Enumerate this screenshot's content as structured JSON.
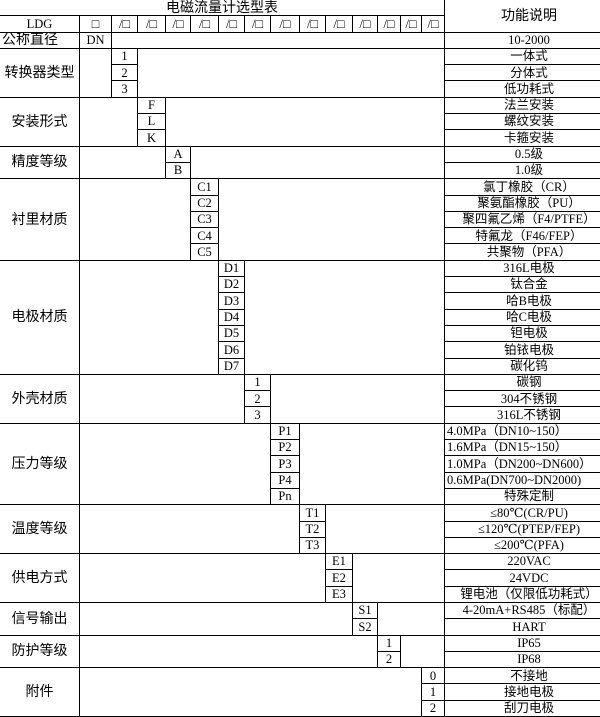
{
  "title": "电磁流量计选型表",
  "function_header": "功能说明",
  "model_row": {
    "label": "LDG",
    "cells": [
      "□",
      "/□",
      "/□",
      "/□",
      "/□",
      "/□",
      "/□",
      "/□",
      "/□",
      "/□",
      "/□",
      "/□",
      "/□",
      "/□"
    ]
  },
  "nominal_diameter": {
    "label": "公称直径",
    "code": "DN",
    "function": "10-2000"
  },
  "groups": [
    {
      "label": "转换器类型",
      "codes": [
        "1",
        "2",
        "3"
      ],
      "functions": [
        "一体式",
        "分体式",
        "低功耗式"
      ]
    },
    {
      "label": "安装形式",
      "codes": [
        "F",
        "L",
        "K"
      ],
      "functions": [
        "法兰安装",
        "螺纹安装",
        "卡箍安装"
      ]
    },
    {
      "label": "精度等级",
      "codes": [
        "A",
        "B"
      ],
      "functions": [
        "0.5级",
        "1.0级"
      ]
    },
    {
      "label": "衬里材质",
      "codes": [
        "C1",
        "C2",
        "C3",
        "C4",
        "C5"
      ],
      "functions": [
        "氯丁橡胶（CR）",
        "聚氨酯橡胶（PU）",
        "聚四氟乙烯（F4/PTFE）",
        "特氟龙（F46/FEP）",
        "共聚物（PFA）"
      ]
    },
    {
      "label": "电极材质",
      "codes": [
        "D1",
        "D2",
        "D3",
        "D4",
        "D5",
        "D6",
        "D7"
      ],
      "functions": [
        "316L电极",
        "钛合金",
        "哈B电极",
        "哈C电极",
        "钽电极",
        "铂铱电极",
        "碳化钨"
      ]
    },
    {
      "label": "外壳材质",
      "codes": [
        "1",
        "2",
        "3"
      ],
      "functions": [
        "碳钢",
        "304不锈钢",
        "316L不锈钢"
      ]
    },
    {
      "label": "压力等级",
      "codes": [
        "P1",
        "P2",
        "P3",
        "P4",
        "Pn"
      ],
      "functions": [
        "4.0MPa（DN10~150）",
        "1.6MPa（DN15~150）",
        "1.0MPa（DN200~DN600）",
        "0.6MPa(DN700~DN2000)",
        "特殊定制"
      ],
      "left_aligned": [
        true,
        true,
        true,
        true,
        false
      ]
    },
    {
      "label": "温度等级",
      "codes": [
        "T1",
        "T2",
        "T3"
      ],
      "functions": [
        "≤80℃(CR/PU)",
        "≤120℃(PTEP/FEP)",
        "≤200℃(PFA)"
      ]
    },
    {
      "label": "供电方式",
      "codes": [
        "E1",
        "E2",
        "E3"
      ],
      "functions": [
        "220VAC",
        "24VDC",
        "锂电池（仅限低功耗式）"
      ]
    },
    {
      "label": "信号输出",
      "codes": [
        "S1",
        "S2"
      ],
      "functions": [
        "4-20mA+RS485（标配）",
        "HART"
      ]
    },
    {
      "label": "防护等级",
      "codes": [
        "1",
        "2"
      ],
      "functions": [
        "IP65",
        "IP68"
      ]
    },
    {
      "label": "附件",
      "codes": [
        "0",
        "1",
        "2"
      ],
      "functions": [
        "不接地",
        "接地电极",
        "刮刀电极"
      ]
    }
  ]
}
